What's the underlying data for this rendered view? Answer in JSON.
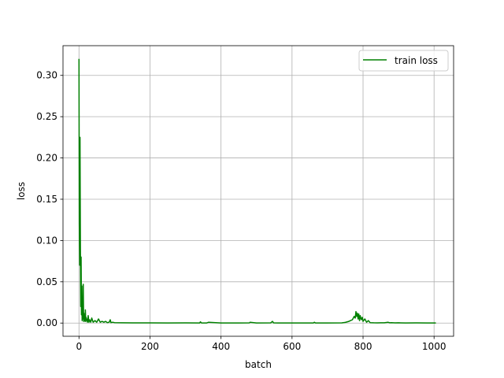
{
  "chart_data": {
    "type": "line",
    "title": "",
    "xlabel": "batch",
    "ylabel": "loss",
    "xlim": [
      -45,
      1055
    ],
    "ylim": [
      -0.016,
      0.336
    ],
    "xticks": [
      0,
      200,
      400,
      600,
      800,
      1000
    ],
    "yticks": [
      0.0,
      0.05,
      0.1,
      0.15,
      0.2,
      0.25,
      0.3
    ],
    "xtick_labels": [
      "0",
      "200",
      "400",
      "600",
      "800",
      "1000"
    ],
    "ytick_labels": [
      "0.00",
      "0.05",
      "0.10",
      "0.15",
      "0.20",
      "0.25",
      "0.30"
    ],
    "grid": true,
    "legend_position": "upper right",
    "series": [
      {
        "name": "train loss",
        "color": "#008000",
        "x": [
          0,
          1,
          2,
          3,
          4,
          5,
          6,
          7,
          8,
          9,
          10,
          11,
          12,
          13,
          14,
          15,
          16,
          17,
          18,
          19,
          20,
          22,
          24,
          26,
          28,
          30,
          33,
          36,
          40,
          45,
          50,
          55,
          60,
          65,
          70,
          75,
          80,
          85,
          88,
          90,
          95,
          100,
          120,
          150,
          200,
          250,
          300,
          340,
          342,
          345,
          360,
          365,
          400,
          450,
          480,
          482,
          500,
          540,
          545,
          548,
          560,
          600,
          660,
          663,
          666,
          700,
          740,
          750,
          760,
          765,
          770,
          775,
          778,
          780,
          782,
          784,
          786,
          788,
          790,
          792,
          795,
          798,
          800,
          805,
          810,
          815,
          820,
          830,
          840,
          850,
          860,
          870,
          875,
          880,
          890,
          900,
          920,
          950,
          980,
          1000,
          1005
        ],
        "y": [
          0.32,
          0.12,
          0.07,
          0.225,
          0.09,
          0.02,
          0.08,
          0.01,
          0.045,
          0.003,
          0.03,
          0.005,
          0.047,
          0.002,
          0.012,
          0.003,
          0.008,
          0.002,
          0.016,
          0.002,
          0.007,
          0.004,
          0.001,
          0.009,
          0.001,
          0.004,
          0.001,
          0.006,
          0.001,
          0.003,
          0.001,
          0.005,
          0.001,
          0.002,
          0.001,
          0.002,
          0.0005,
          0.001,
          0.004,
          0.0005,
          0.001,
          0.0005,
          0.0003,
          0.0002,
          0.0002,
          0.0001,
          0.0002,
          0.0001,
          0.0015,
          0.0001,
          0.0001,
          0.001,
          0.0001,
          0.0001,
          0.0002,
          0.001,
          0.0001,
          0.0002,
          0.002,
          0.0002,
          0.0001,
          0.0001,
          0.0001,
          0.001,
          0.0001,
          0.0001,
          0.0002,
          0.0008,
          0.002,
          0.003,
          0.004,
          0.008,
          0.006,
          0.014,
          0.008,
          0.012,
          0.005,
          0.011,
          0.003,
          0.009,
          0.004,
          0.007,
          0.002,
          0.005,
          0.001,
          0.003,
          0.0005,
          0.0003,
          0.0002,
          0.0003,
          0.0003,
          0.001,
          0.0003,
          0.0005,
          0.0002,
          0.0003,
          0.0001,
          0.0002,
          0.0001,
          0.0001,
          0.0001
        ]
      }
    ]
  }
}
